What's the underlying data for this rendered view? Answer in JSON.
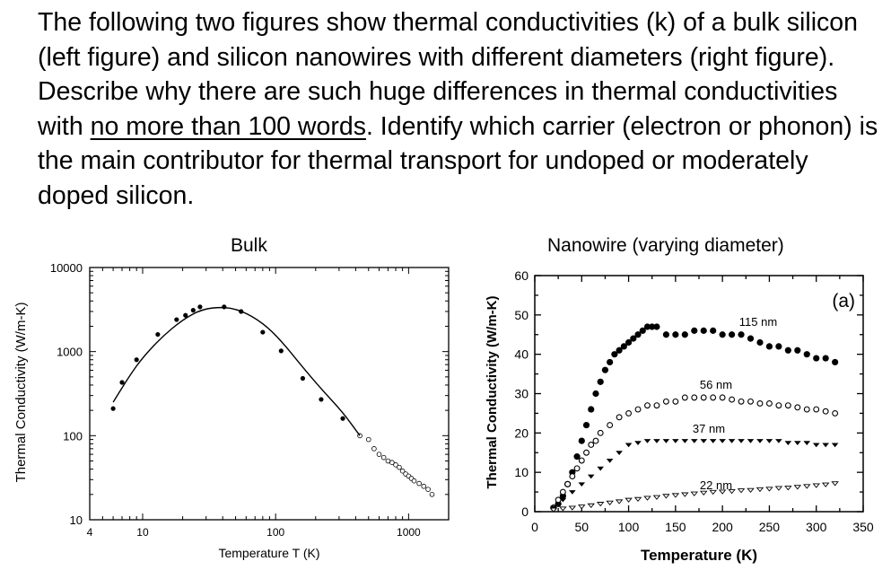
{
  "question": {
    "text_before": "The following two figures show thermal conductivities (k) of a bulk silicon (left figure) and silicon nanowires with different diameters (right figure). Describe why there are such huge differences in thermal conductivities with ",
    "underlined": "no more than 100 words",
    "text_after": ". Identify which carrier (electron or phonon) is the main contributor for thermal transport for undoped or moderately doped silicon."
  },
  "chart_data": [
    {
      "type": "scatter",
      "title": "Bulk",
      "xlabel": "Temperature T (K)",
      "ylabel": "Thermal Conductivity (W/m-K)",
      "xscale": "log",
      "yscale": "log",
      "xlim": [
        4,
        2000
      ],
      "ylim": [
        10,
        10000
      ],
      "xticks": [
        "4",
        "10",
        "100",
        "1000"
      ],
      "yticks": [
        "10",
        "100",
        "1000",
        "10000"
      ],
      "series": [
        {
          "marker": "filled-circle",
          "x": [
            6,
            7,
            9,
            13,
            18,
            21,
            24,
            27,
            41,
            55,
            80,
            110,
            160,
            220,
            320
          ],
          "y": [
            210,
            430,
            800,
            1600,
            2400,
            2700,
            3100,
            3400,
            3400,
            3000,
            1700,
            1020,
            480,
            270,
            160
          ]
        },
        {
          "marker": "open-circle",
          "x": [
            430,
            500,
            550,
            600,
            650,
            700,
            750,
            800,
            850,
            900,
            950,
            1000,
            1050,
            1100,
            1200,
            1300,
            1400,
            1500
          ],
          "y": [
            100,
            90,
            70,
            60,
            55,
            50,
            48,
            45,
            42,
            38,
            35,
            33,
            31,
            29,
            27,
            25,
            23,
            20
          ]
        },
        {
          "marker": "fit-line",
          "x": [
            6,
            8,
            10,
            14,
            20,
            28,
            40,
            55,
            80,
            110,
            160,
            220,
            320,
            430
          ],
          "y": [
            250,
            520,
            850,
            1500,
            2400,
            3200,
            3400,
            3100,
            2200,
            1350,
            650,
            360,
            190,
            100
          ]
        }
      ]
    },
    {
      "type": "scatter",
      "title": "Nanowire (varying diameter)",
      "xlabel": "Temperature (K)",
      "ylabel": "Thermal Conductivity (W/m-K)",
      "xlim": [
        0,
        350
      ],
      "ylim": [
        0,
        60
      ],
      "xticks": [
        "0",
        "50",
        "100",
        "150",
        "200",
        "250",
        "300",
        "350"
      ],
      "yticks": [
        "0",
        "10",
        "20",
        "30",
        "40",
        "50",
        "60"
      ],
      "panel_label": "(a)",
      "series": [
        {
          "name": "115 nm",
          "marker": "filled-circle",
          "x": [
            20,
            25,
            30,
            35,
            40,
            45,
            50,
            55,
            60,
            65,
            70,
            75,
            80,
            85,
            90,
            95,
            100,
            105,
            110,
            115,
            120,
            125,
            130,
            140,
            150,
            160,
            170,
            180,
            190,
            200,
            210,
            220,
            230,
            240,
            250,
            260,
            270,
            280,
            290,
            300,
            310,
            320
          ],
          "y": [
            1,
            2,
            4,
            7,
            10,
            14,
            18,
            22,
            26,
            30,
            33,
            36,
            38,
            40,
            41,
            42,
            43,
            44,
            45,
            46,
            47,
            47,
            47,
            45,
            45,
            45,
            46,
            46,
            46,
            45,
            45,
            45,
            44,
            43,
            42,
            42,
            41,
            41,
            40,
            39,
            39,
            38
          ]
        },
        {
          "name": "56 nm",
          "marker": "open-circle",
          "x": [
            20,
            25,
            30,
            35,
            40,
            45,
            50,
            55,
            60,
            65,
            70,
            80,
            90,
            100,
            110,
            120,
            130,
            140,
            150,
            160,
            170,
            180,
            190,
            200,
            210,
            220,
            230,
            240,
            250,
            260,
            270,
            280,
            290,
            300,
            310,
            320
          ],
          "y": [
            1,
            3,
            5,
            7,
            9,
            11,
            13,
            15,
            17,
            18,
            20,
            22,
            24,
            25,
            26,
            27,
            27,
            28,
            28,
            29,
            29,
            29,
            29,
            29,
            28.5,
            28,
            28,
            27.5,
            27.5,
            27,
            27,
            26.5,
            26,
            26,
            25.5,
            25
          ]
        },
        {
          "name": "37 nm",
          "marker": "filled-triangle-down",
          "x": [
            20,
            30,
            40,
            50,
            60,
            70,
            80,
            90,
            100,
            110,
            120,
            130,
            140,
            150,
            160,
            170,
            180,
            190,
            200,
            210,
            220,
            230,
            240,
            250,
            260,
            270,
            280,
            290,
            300,
            310,
            320
          ],
          "y": [
            1,
            3,
            5,
            7,
            9,
            11,
            13,
            15,
            17,
            17.5,
            18,
            18,
            18,
            18,
            18,
            18,
            18,
            18,
            18,
            18,
            18,
            18,
            18,
            18,
            18,
            17.5,
            17.5,
            17.5,
            17,
            17,
            17
          ]
        },
        {
          "name": "22 nm",
          "marker": "open-triangle-down",
          "x": [
            20,
            30,
            40,
            50,
            60,
            70,
            80,
            90,
            100,
            110,
            120,
            130,
            140,
            150,
            160,
            170,
            180,
            190,
            200,
            210,
            220,
            230,
            240,
            250,
            260,
            270,
            280,
            290,
            300,
            310,
            320
          ],
          "y": [
            0.5,
            0.8,
            1,
            1.3,
            1.6,
            2,
            2.3,
            2.6,
            3,
            3.2,
            3.5,
            3.7,
            4,
            4.2,
            4.4,
            4.6,
            4.8,
            5,
            5.1,
            5.2,
            5.4,
            5.5,
            5.7,
            5.8,
            6,
            6.1,
            6.3,
            6.5,
            6.7,
            6.9,
            7.2
          ]
        }
      ]
    }
  ]
}
